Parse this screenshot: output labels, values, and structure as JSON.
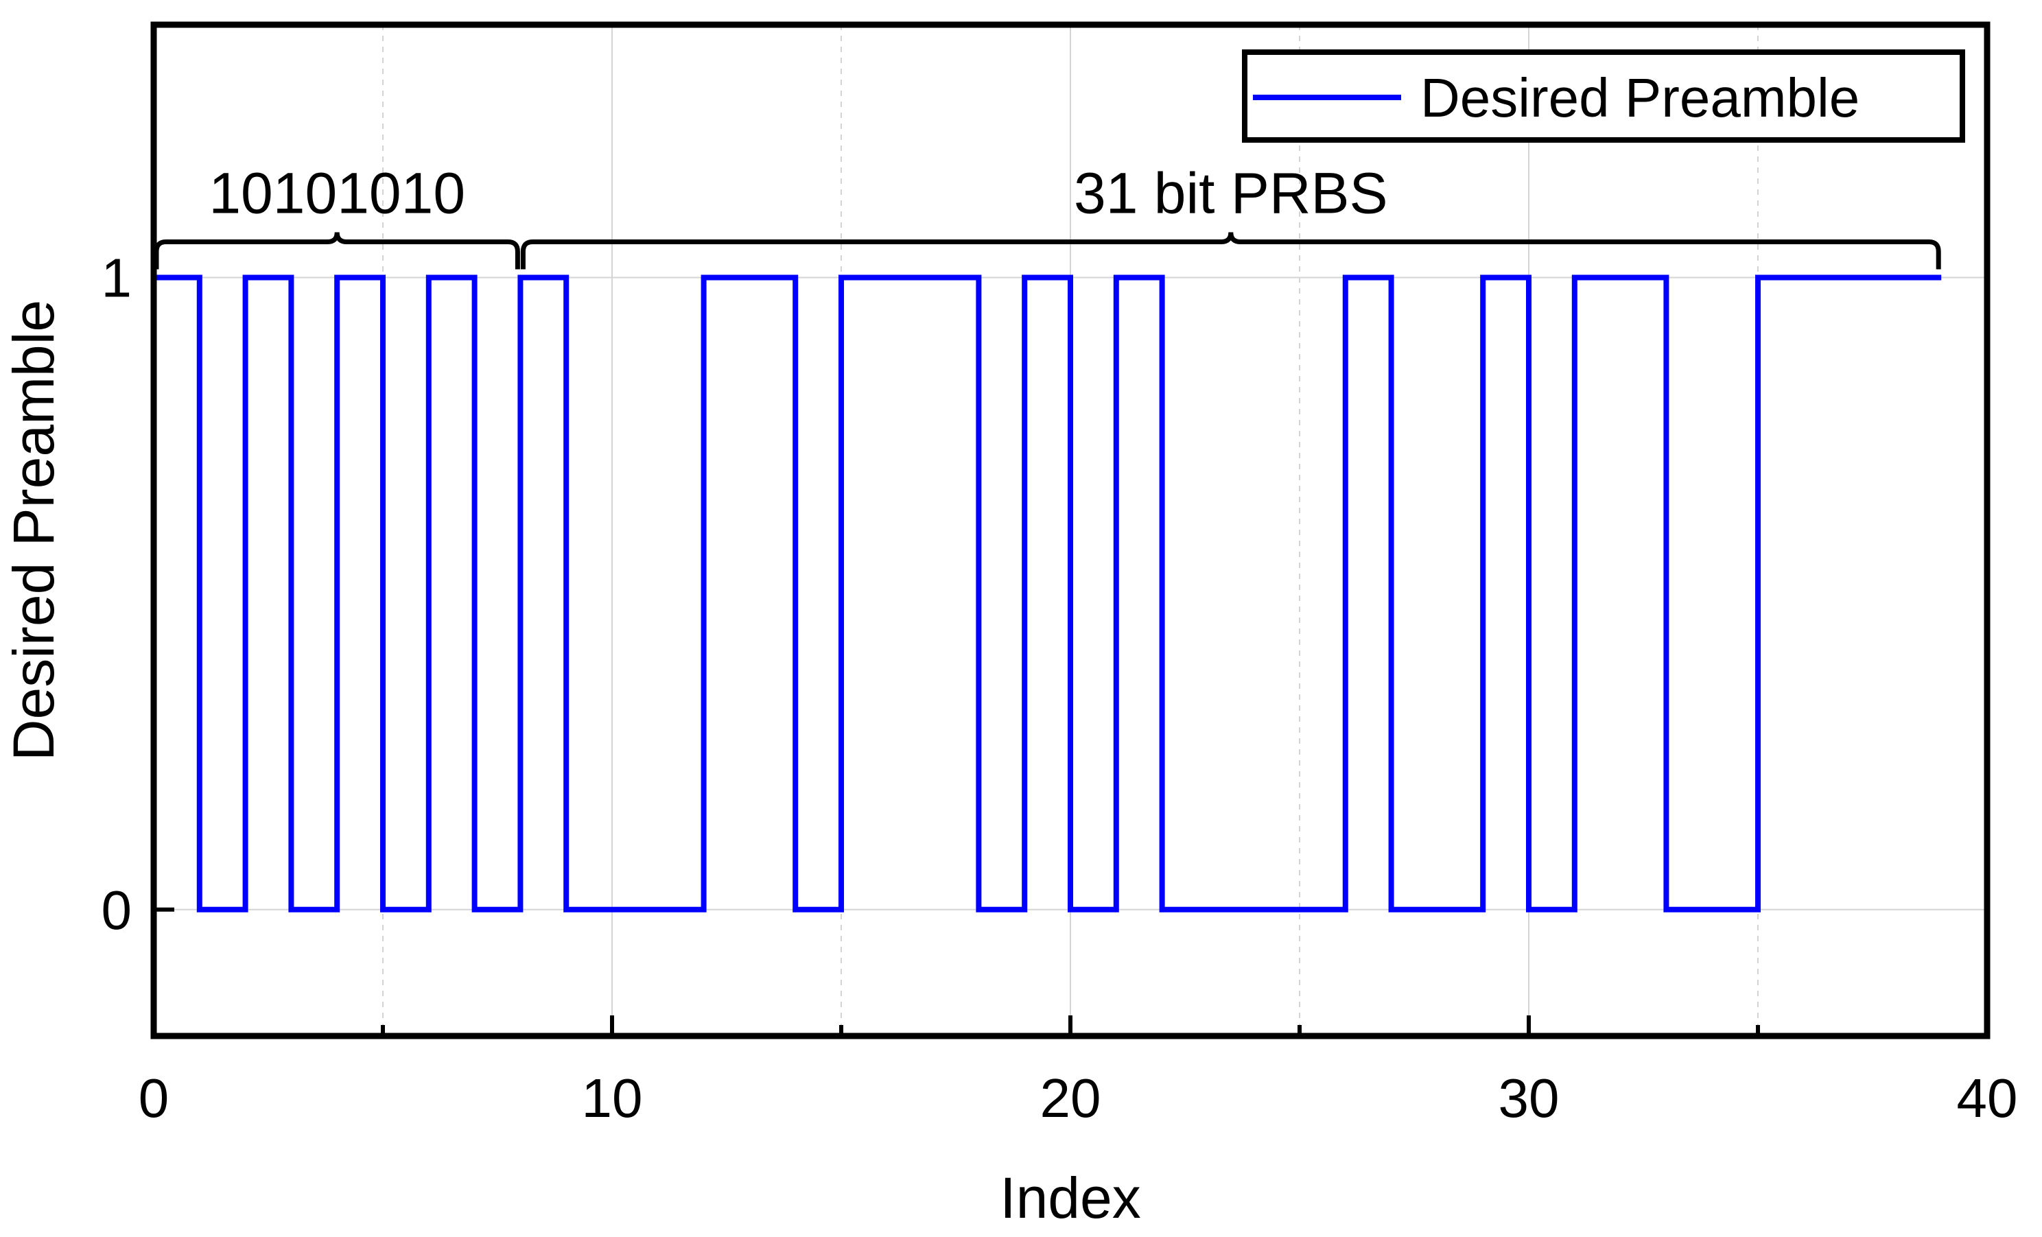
{
  "chart_data": {
    "type": "line",
    "step": "post",
    "xlabel": "Index",
    "ylabel": "Desired Preamble",
    "xlim": [
      0,
      40
    ],
    "ylim": [
      -0.2,
      1.4
    ],
    "xticks": [
      0,
      10,
      20,
      30,
      40
    ],
    "yticks": [
      0,
      1
    ],
    "grid": true,
    "legend_placement": "top-right",
    "series": [
      {
        "name": "Desired Preamble",
        "color": "#0000ff",
        "x": [
          0,
          1,
          2,
          3,
          4,
          5,
          6,
          7,
          8,
          9,
          10,
          11,
          12,
          13,
          14,
          15,
          16,
          17,
          18,
          19,
          20,
          21,
          22,
          23,
          24,
          25,
          26,
          27,
          28,
          29,
          30,
          31,
          32,
          33,
          34,
          35,
          36,
          37,
          38,
          39
        ],
        "values": [
          1,
          0,
          1,
          0,
          1,
          0,
          1,
          0,
          1,
          0,
          0,
          0,
          1,
          1,
          0,
          1,
          1,
          1,
          0,
          1,
          0,
          1,
          0,
          0,
          0,
          0,
          1,
          0,
          0,
          1,
          0,
          1,
          1,
          0,
          0,
          1,
          1,
          1,
          1,
          1
        ]
      }
    ],
    "annotations": [
      {
        "text": "10101010",
        "x_from": 0,
        "x_to": 8
      },
      {
        "text": "31 bit PRBS",
        "x_from": 8,
        "x_to": 39
      }
    ]
  }
}
